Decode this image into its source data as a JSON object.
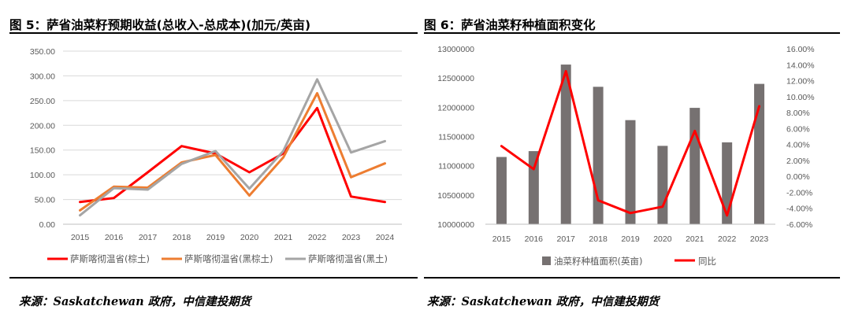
{
  "left": {
    "title": "图 5：萨省油菜籽预期收益(总收入-总成本)(加元/英亩)",
    "source": "来源：Saskatchewan 政府，中信建投期货",
    "chart_data": {
      "type": "line",
      "title": "",
      "xlabel": "",
      "ylabel": "",
      "x": [
        "2015",
        "2016",
        "2017",
        "2018",
        "2019",
        "2020",
        "2021",
        "2022",
        "2023",
        "2024"
      ],
      "ylim": [
        0,
        350
      ],
      "yticks": [
        "0.00",
        "50.00",
        "100.00",
        "150.00",
        "200.00",
        "250.00",
        "300.00",
        "350.00"
      ],
      "grid": true,
      "legend": "bottom",
      "series": [
        {
          "name": "萨斯喀彻温省(棕土)",
          "color": "#ff0000",
          "values": [
            45,
            53,
            105,
            158,
            143,
            105,
            143,
            235,
            56,
            45
          ]
        },
        {
          "name": "萨斯喀彻温省(黑棕土)",
          "color": "#ed7d31",
          "values": [
            28,
            76,
            74,
            125,
            140,
            58,
            135,
            265,
            95,
            123
          ]
        },
        {
          "name": "萨斯喀彻温省(黑土)",
          "color": "#a5a5a5",
          "values": [
            18,
            73,
            70,
            122,
            148,
            72,
            148,
            293,
            145,
            168
          ]
        }
      ]
    }
  },
  "right": {
    "title": "图 6：萨省油菜籽种植面积变化",
    "source": "来源：Saskatchewan 政府，中信建投期货",
    "chart_data": {
      "type": "bar",
      "title": "",
      "xlabel": "",
      "ylabel": "",
      "categories": [
        "2015",
        "2016",
        "2017",
        "2018",
        "2019",
        "2020",
        "2021",
        "2022",
        "2023"
      ],
      "ylim": [
        10000000,
        13000000
      ],
      "yticks": [
        "10000000",
        "10500000",
        "11000000",
        "11500000",
        "12000000",
        "12500000",
        "13000000"
      ],
      "y2lim": [
        -6,
        16
      ],
      "y2ticks": [
        "-6.00%",
        "-4.00%",
        "-2.00%",
        "0.00%",
        "2.00%",
        "4.00%",
        "6.00%",
        "8.00%",
        "10.00%",
        "12.00%",
        "14.00%",
        "16.00%"
      ],
      "grid": false,
      "legend": "bottom",
      "series": [
        {
          "name": "油菜籽种植面积(英亩)",
          "type": "bar",
          "axis": "left",
          "color": "#767171",
          "values": [
            11150000,
            11250000,
            12730000,
            12350000,
            11780000,
            11340000,
            11990000,
            11400000,
            12400000
          ]
        },
        {
          "name": "同比",
          "type": "line",
          "axis": "right",
          "color": "#ff0000",
          "values": [
            3.8,
            0.9,
            13.2,
            -3.0,
            -4.6,
            -3.8,
            5.7,
            -4.9,
            8.8
          ]
        }
      ]
    }
  }
}
